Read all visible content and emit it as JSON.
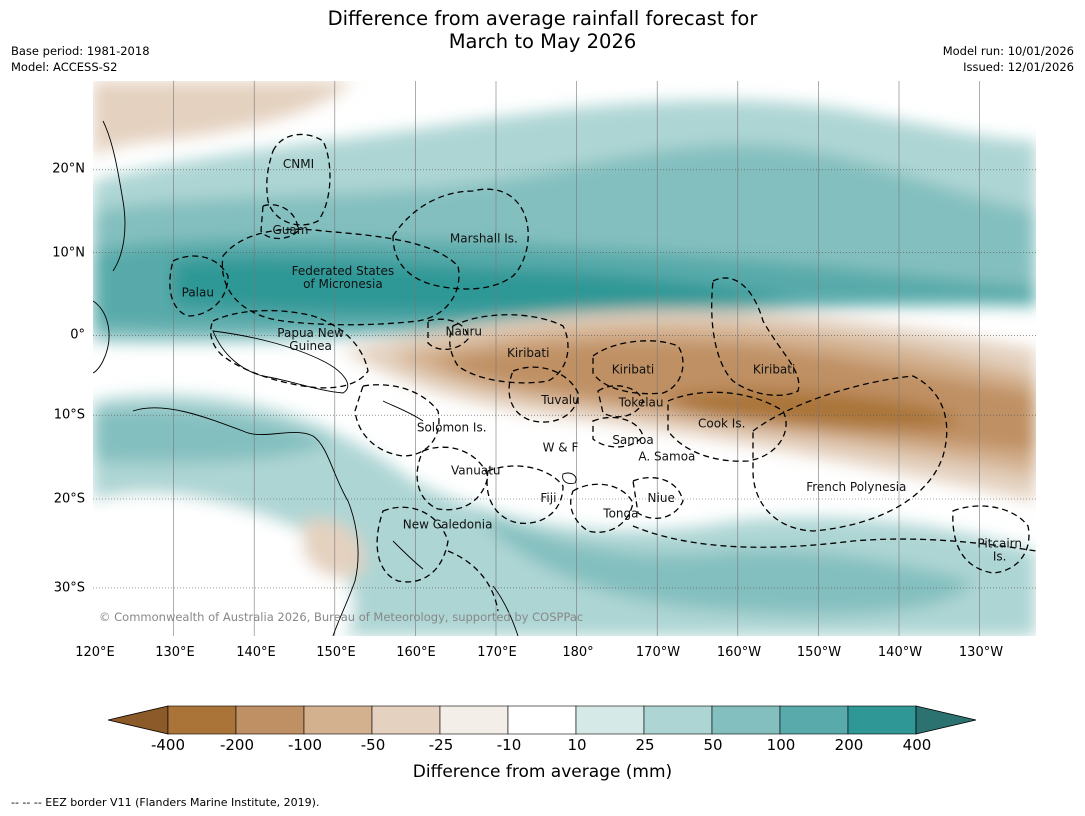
{
  "title": {
    "line1": "Difference from average rainfall forecast for",
    "line2": "March to May 2026"
  },
  "meta_left": {
    "base_period": "Base period: 1981-2018",
    "model": "Model: ACCESS-S2"
  },
  "meta_right": {
    "model_run": "Model run: 10/01/2026",
    "issued": "Issued: 12/01/2026"
  },
  "map": {
    "lon_ticks": [
      "120°E",
      "130°E",
      "140°E",
      "150°E",
      "160°E",
      "170°E",
      "180°",
      "170°W",
      "160°W",
      "150°W",
      "140°W",
      "130°W"
    ],
    "lat_ticks": [
      "20°N",
      "10°N",
      "0°",
      "10°S",
      "20°S",
      "30°S"
    ],
    "copyright": "© Commonwealth of Australia 2026, Bureau of Meteorology, supported by COSPPac",
    "regions": [
      {
        "name": "CNMI",
        "lon": 145.5,
        "lat": 20.5
      },
      {
        "name": "Guam",
        "lon": 144.5,
        "lat": 12.5
      },
      {
        "name": "Marshall Is.",
        "lon": 168.5,
        "lat": 11.5
      },
      {
        "name": "Federated States",
        "lon": 151,
        "lat": 7.6
      },
      {
        "name": "of Micronesia",
        "lon": 151,
        "lat": 6.0
      },
      {
        "name": "Palau",
        "lon": 133,
        "lat": 5.0
      },
      {
        "name": "Nauru",
        "lon": 166,
        "lat": 0.3
      },
      {
        "name": "Papua New",
        "lon": 147,
        "lat": 0.1
      },
      {
        "name": "Guinea",
        "lon": 147,
        "lat": -1.5
      },
      {
        "name": "Kiribati",
        "lon": 174,
        "lat": -2.3
      },
      {
        "name": "Kiribati",
        "lon": -173,
        "lat": -4.3
      },
      {
        "name": "Kiribati",
        "lon": -155.5,
        "lat": -4.3
      },
      {
        "name": "Tuvalu",
        "lon": 178,
        "lat": -8.0
      },
      {
        "name": "Tokelau",
        "lon": -172,
        "lat": -8.3
      },
      {
        "name": "Cook Is.",
        "lon": -162,
        "lat": -10.8
      },
      {
        "name": "Solomon Is.",
        "lon": 164.5,
        "lat": -11.3
      },
      {
        "name": "Samoa",
        "lon": -173,
        "lat": -12.8
      },
      {
        "name": "W & F",
        "lon": 178,
        "lat": -13.7
      },
      {
        "name": "A. Samoa",
        "lon": -168.8,
        "lat": -14.8
      },
      {
        "name": "Vanuatu",
        "lon": 167.5,
        "lat": -16.5
      },
      {
        "name": "French Polynesia",
        "lon": -145.3,
        "lat": -18.5
      },
      {
        "name": "Fiji",
        "lon": 176.5,
        "lat": -19.8
      },
      {
        "name": "Niue",
        "lon": -169.5,
        "lat": -19.8
      },
      {
        "name": "Tonga",
        "lon": -174.5,
        "lat": -21.7
      },
      {
        "name": "New Caledonia",
        "lon": 164,
        "lat": -23.0
      },
      {
        "name": "Pitcairn",
        "lon": -127.5,
        "lat": -25.3
      },
      {
        "name": "Is.",
        "lon": -127.5,
        "lat": -26.9
      }
    ]
  },
  "colorbar": {
    "tick_labels": [
      "-400",
      "-200",
      "-100",
      "-50",
      "-25",
      "-10",
      "10",
      "25",
      "50",
      "100",
      "200",
      "400"
    ],
    "colors": [
      "#8c5a28",
      "#aa7438",
      "#bf9064",
      "#d3b08e",
      "#e4d1c0",
      "#f3eee7",
      "#ffffff",
      "#d5e9e7",
      "#add5d4",
      "#84bfbf",
      "#59aaaa",
      "#2f9896",
      "#2b7271"
    ],
    "label": "Difference from average (mm)"
  },
  "footnote": "--  --  -- EEZ border V11 (Flanders Marine Institute, 2019)."
}
